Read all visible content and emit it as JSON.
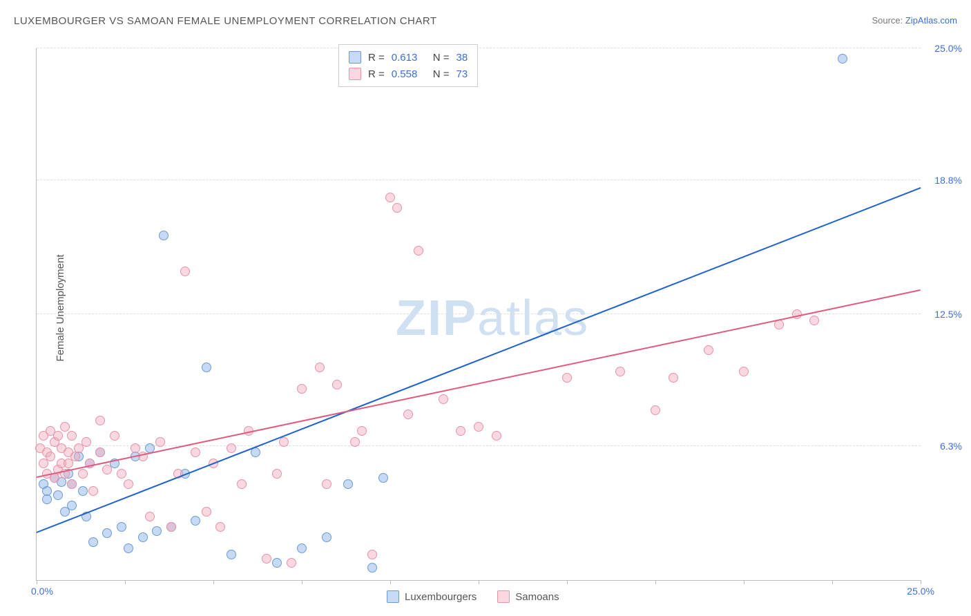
{
  "title": "LUXEMBOURGER VS SAMOAN FEMALE UNEMPLOYMENT CORRELATION CHART",
  "source_prefix": "Source: ",
  "source_name": "ZipAtlas.com",
  "ylabel": "Female Unemployment",
  "watermark_a": "ZIP",
  "watermark_b": "atlas",
  "chart": {
    "type": "scatter",
    "xlim": [
      0,
      25
    ],
    "ylim": [
      0,
      25
    ],
    "x_tick_step": 2.5,
    "y_gridlines": [
      6.3,
      12.5,
      18.8,
      25.0
    ],
    "y_tick_labels": [
      "6.3%",
      "12.5%",
      "18.8%",
      "25.0%"
    ],
    "x_min_label": "0.0%",
    "x_max_label": "25.0%",
    "background_color": "#ffffff",
    "grid_color": "#dddddd",
    "axis_color": "#bbbbbb",
    "tick_label_color": "#3b6fd6",
    "title_color": "#555555",
    "title_fontsize": 15,
    "label_fontsize": 15,
    "point_radius": 7,
    "series": [
      {
        "name": "Luxembourgers",
        "color_fill": "rgba(131,173,229,0.45)",
        "color_stroke": "#6b9ad6",
        "trend_color": "#1f62c9",
        "R": "0.613",
        "N": "38",
        "trend": {
          "x1": 0,
          "y1": 2.2,
          "x2": 25,
          "y2": 18.4
        },
        "points": [
          [
            0.2,
            4.5
          ],
          [
            0.3,
            3.8
          ],
          [
            0.3,
            4.2
          ],
          [
            0.5,
            4.8
          ],
          [
            0.6,
            4.0
          ],
          [
            0.7,
            4.6
          ],
          [
            0.8,
            3.2
          ],
          [
            0.9,
            5.0
          ],
          [
            1.0,
            4.5
          ],
          [
            1.0,
            3.5
          ],
          [
            1.2,
            5.8
          ],
          [
            1.3,
            4.2
          ],
          [
            1.4,
            3.0
          ],
          [
            1.5,
            5.5
          ],
          [
            1.6,
            1.8
          ],
          [
            1.8,
            6.0
          ],
          [
            2.0,
            2.2
          ],
          [
            2.2,
            5.5
          ],
          [
            2.4,
            2.5
          ],
          [
            2.6,
            1.5
          ],
          [
            2.8,
            5.8
          ],
          [
            3.0,
            2.0
          ],
          [
            3.2,
            6.2
          ],
          [
            3.4,
            2.3
          ],
          [
            3.6,
            16.2
          ],
          [
            3.8,
            2.5
          ],
          [
            4.2,
            5.0
          ],
          [
            4.5,
            2.8
          ],
          [
            4.8,
            10.0
          ],
          [
            5.5,
            1.2
          ],
          [
            6.2,
            6.0
          ],
          [
            6.8,
            0.8
          ],
          [
            7.5,
            1.5
          ],
          [
            8.2,
            2.0
          ],
          [
            8.8,
            4.5
          ],
          [
            9.5,
            0.6
          ],
          [
            9.8,
            4.8
          ],
          [
            22.8,
            24.5
          ]
        ]
      },
      {
        "name": "Samoans",
        "color_fill": "rgba(244,168,186,0.45)",
        "color_stroke": "#e693a8",
        "trend_color": "#e05a7e",
        "R": "0.558",
        "N": "73",
        "trend": {
          "x1": 0,
          "y1": 4.8,
          "x2": 25,
          "y2": 13.6
        },
        "points": [
          [
            0.1,
            6.2
          ],
          [
            0.2,
            5.5
          ],
          [
            0.2,
            6.8
          ],
          [
            0.3,
            5.0
          ],
          [
            0.3,
            6.0
          ],
          [
            0.4,
            7.0
          ],
          [
            0.4,
            5.8
          ],
          [
            0.5,
            6.5
          ],
          [
            0.5,
            4.8
          ],
          [
            0.6,
            5.2
          ],
          [
            0.6,
            6.8
          ],
          [
            0.7,
            5.5
          ],
          [
            0.7,
            6.2
          ],
          [
            0.8,
            7.2
          ],
          [
            0.8,
            5.0
          ],
          [
            0.9,
            6.0
          ],
          [
            0.9,
            5.5
          ],
          [
            1.0,
            6.8
          ],
          [
            1.0,
            4.5
          ],
          [
            1.1,
            5.8
          ],
          [
            1.2,
            6.2
          ],
          [
            1.3,
            5.0
          ],
          [
            1.4,
            6.5
          ],
          [
            1.5,
            5.5
          ],
          [
            1.6,
            4.2
          ],
          [
            1.8,
            6.0
          ],
          [
            1.8,
            7.5
          ],
          [
            2.0,
            5.2
          ],
          [
            2.2,
            6.8
          ],
          [
            2.4,
            5.0
          ],
          [
            2.6,
            4.5
          ],
          [
            2.8,
            6.2
          ],
          [
            3.0,
            5.8
          ],
          [
            3.2,
            3.0
          ],
          [
            3.5,
            6.5
          ],
          [
            3.8,
            2.5
          ],
          [
            4.0,
            5.0
          ],
          [
            4.2,
            14.5
          ],
          [
            4.5,
            6.0
          ],
          [
            4.8,
            3.2
          ],
          [
            5.0,
            5.5
          ],
          [
            5.2,
            2.5
          ],
          [
            5.5,
            6.2
          ],
          [
            5.8,
            4.5
          ],
          [
            6.0,
            7.0
          ],
          [
            6.5,
            1.0
          ],
          [
            6.8,
            5.0
          ],
          [
            7.0,
            6.5
          ],
          [
            7.2,
            0.8
          ],
          [
            7.5,
            9.0
          ],
          [
            8.0,
            10.0
          ],
          [
            8.2,
            4.5
          ],
          [
            8.5,
            9.2
          ],
          [
            9.0,
            6.5
          ],
          [
            9.2,
            7.0
          ],
          [
            9.5,
            1.2
          ],
          [
            10.0,
            18.0
          ],
          [
            10.2,
            17.5
          ],
          [
            10.5,
            7.8
          ],
          [
            10.8,
            15.5
          ],
          [
            11.5,
            8.5
          ],
          [
            12.0,
            7.0
          ],
          [
            12.5,
            7.2
          ],
          [
            13.0,
            6.8
          ],
          [
            15.0,
            9.5
          ],
          [
            16.5,
            9.8
          ],
          [
            17.5,
            8.0
          ],
          [
            18.0,
            9.5
          ],
          [
            19.0,
            10.8
          ],
          [
            20.0,
            9.8
          ],
          [
            21.0,
            12.0
          ],
          [
            21.5,
            12.5
          ],
          [
            22.0,
            12.2
          ]
        ]
      }
    ],
    "legend_top": {
      "R_label": "R =",
      "N_label": "N ="
    },
    "legend_bottom": {
      "items": [
        "Luxembourgers",
        "Samoans"
      ]
    }
  }
}
